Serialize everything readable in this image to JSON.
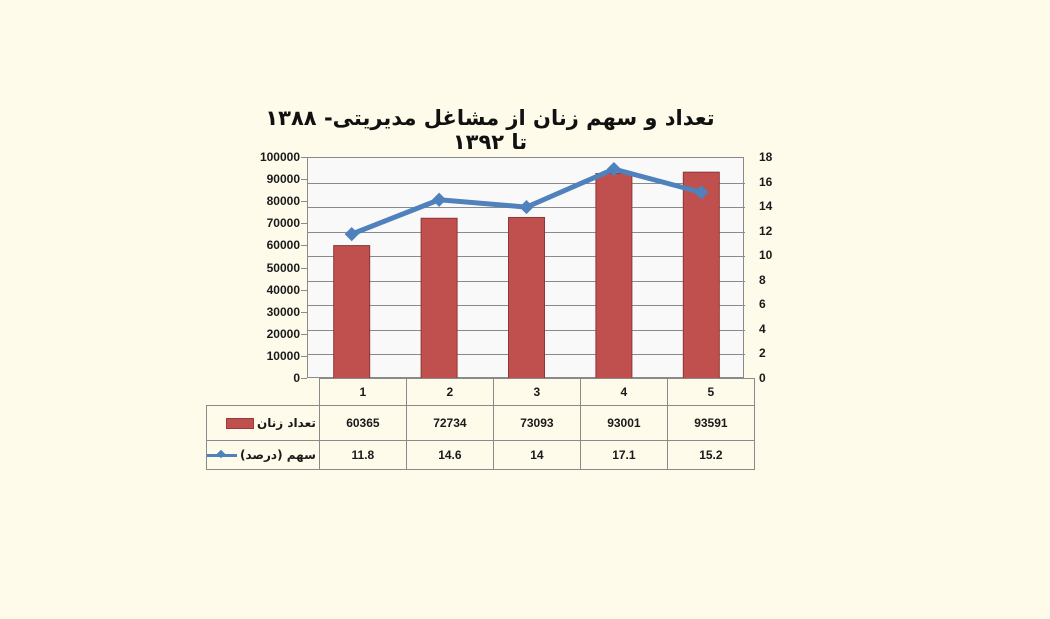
{
  "chart_data": {
    "type": "bar",
    "title": "تعداد و سهم زنان از مشاغل مدیریتی- ۱۳۸۸ تا ۱۳۹۲",
    "categories": [
      "1",
      "2",
      "3",
      "4",
      "5"
    ],
    "series": [
      {
        "name": "تعداد زنان",
        "type": "bar",
        "axis": "left",
        "color": "#C0504D",
        "values": [
          60365,
          72734,
          73093,
          93001,
          93591
        ]
      },
      {
        "name": "سهم (درصد)",
        "type": "line",
        "axis": "right",
        "color": "#4F81BD",
        "marker": "diamond",
        "values": [
          11.8,
          14.6,
          14,
          17.1,
          15.2
        ]
      }
    ],
    "xlabel": "",
    "ylabel": "",
    "y_left": {
      "ylim": [
        0,
        100000
      ],
      "ticks": [
        "100000",
        "90000",
        "80000",
        "70000",
        "60000",
        "50000",
        "40000",
        "30000",
        "20000",
        "10000",
        "0"
      ]
    },
    "y_right": {
      "ylim": [
        0,
        18
      ],
      "ticks": [
        "18",
        "16",
        "14",
        "12",
        "10",
        "8",
        "6",
        "4",
        "2",
        "0"
      ]
    },
    "grid": true,
    "legend_position": "data-table",
    "data_table": true
  },
  "colors": {
    "background": "#FEFBEA",
    "plot_background": "#F9F9F9",
    "bar": "#C0504D",
    "line": "#4F81BD"
  },
  "table": {
    "categories": [
      "1",
      "2",
      "3",
      "4",
      "5"
    ],
    "rows": [
      {
        "label": "تعداد زنان",
        "values": [
          "60365",
          "72734",
          "73093",
          "93001",
          "93591"
        ]
      },
      {
        "label": "سهم (درصد)",
        "values": [
          "11.8",
          "14.6",
          "14",
          "17.1",
          "15.2"
        ]
      }
    ]
  }
}
